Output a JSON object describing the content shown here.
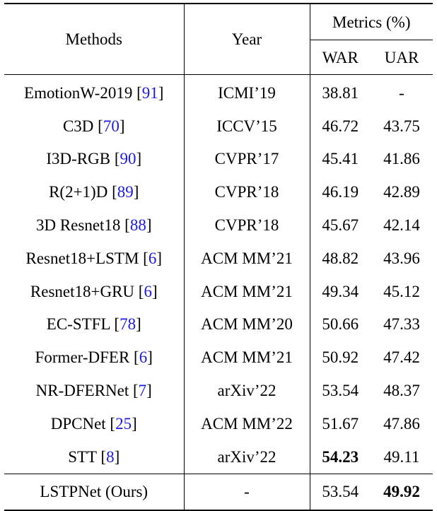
{
  "table": {
    "headers": {
      "methods": "Methods",
      "year": "Year",
      "metrics": "Metrics (%)",
      "war": "WAR",
      "uar": "UAR"
    },
    "rows": [
      {
        "method": "EmotionW-2019 [",
        "ref": "91",
        "close": "]",
        "year": "ICMI’19",
        "war": "38.81",
        "uar": "-"
      },
      {
        "method": "C3D [",
        "ref": "70",
        "close": "]",
        "year": "ICCV’15",
        "war": "46.72",
        "uar": "43.75"
      },
      {
        "method": "I3D-RGB [",
        "ref": "90",
        "close": "]",
        "year": "CVPR’17",
        "war": "45.41",
        "uar": "41.86"
      },
      {
        "method": "R(2+1)D [",
        "ref": "89",
        "close": "]",
        "year": "CVPR’18",
        "war": "46.19",
        "uar": "42.89"
      },
      {
        "method": "3D Resnet18 [",
        "ref": "88",
        "close": "]",
        "year": "CVPR’18",
        "war": "45.67",
        "uar": "42.14"
      },
      {
        "method": "Resnet18+LSTM [",
        "ref": "6",
        "close": "]",
        "year": "ACM MM’21",
        "war": "48.82",
        "uar": "43.96"
      },
      {
        "method": "Resnet18+GRU [",
        "ref": "6",
        "close": "]",
        "year": "ACM MM’21",
        "war": "49.34",
        "uar": "45.12"
      },
      {
        "method": "EC-STFL [",
        "ref": "78",
        "close": "]",
        "year": "ACM MM’20",
        "war": "50.66",
        "uar": "47.33"
      },
      {
        "method": "Former-DFER [",
        "ref": "6",
        "close": "]",
        "year": "ACM MM’21",
        "war": "50.92",
        "uar": "47.42"
      },
      {
        "method": "NR-DFERNet [",
        "ref": "7",
        "close": "]",
        "year": "arXiv’22",
        "war": "53.54",
        "uar": "48.37"
      },
      {
        "method": "DPCNet [",
        "ref": "25",
        "close": "]",
        "year": "ACM MM’22",
        "war": "51.67",
        "uar": "47.86"
      },
      {
        "method": "STT [",
        "ref": "8",
        "close": "]",
        "year": "arXiv’22",
        "war": "54.23",
        "uar": "49.11"
      }
    ],
    "ours": {
      "method": "LSTPNet (Ours)",
      "year": "-",
      "war": "53.54",
      "uar": "49.92"
    }
  }
}
